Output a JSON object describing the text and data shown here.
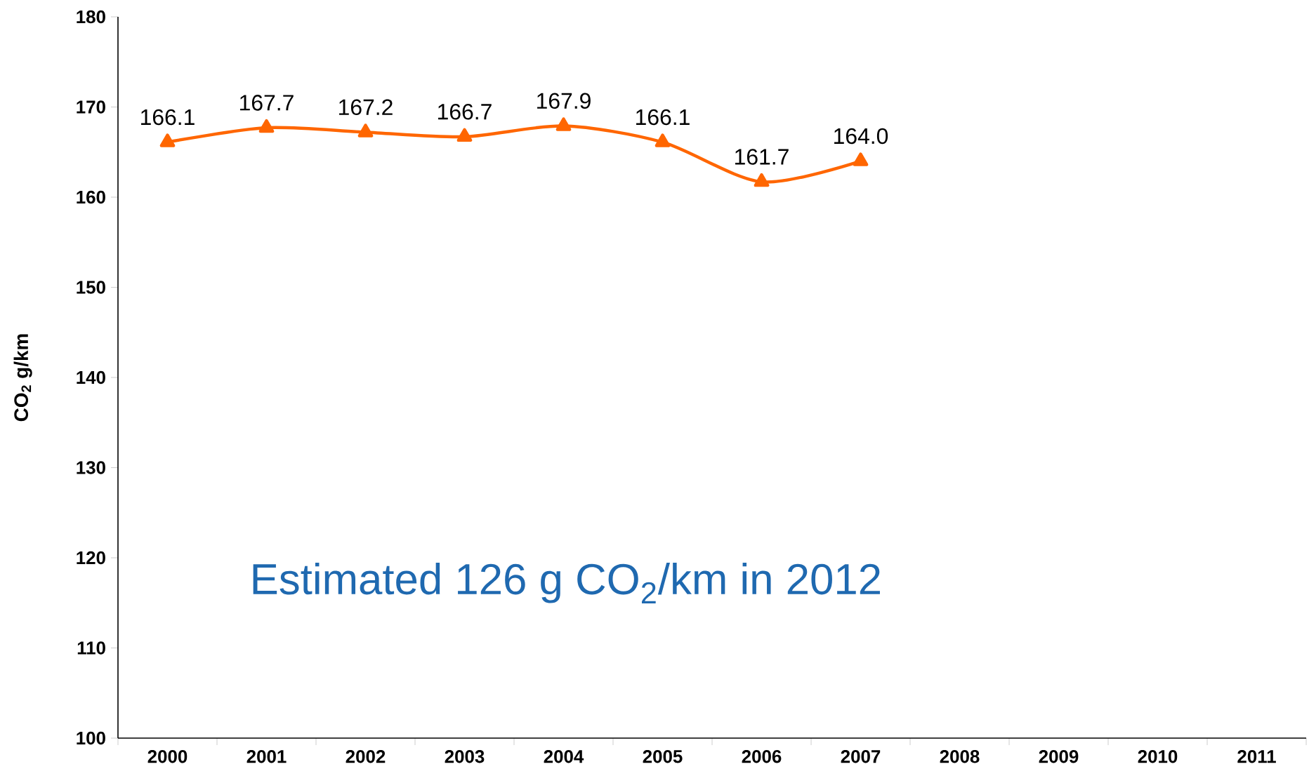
{
  "chart_data": {
    "type": "line",
    "ylabel": "CO$_{2}$ g/km",
    "categories": [
      "2000",
      "2001",
      "2002",
      "2003",
      "2004",
      "2005",
      "2006",
      "2007",
      "2008",
      "2009",
      "2010",
      "2011"
    ],
    "values": [
      166.1,
      167.7,
      167.2,
      166.7,
      167.9,
      166.1,
      161.7,
      164.0,
      null,
      null,
      null,
      null
    ],
    "color": "#ff6600",
    "marker": "triangle",
    "value_labels": [
      "166.1",
      "167.7",
      "167.2",
      "166.7",
      "167.9",
      "166.1",
      "161.7",
      "164.0",
      null,
      null,
      null,
      null
    ],
    "ylim": [
      100,
      180
    ],
    "yticks": [
      100,
      110,
      120,
      130,
      140,
      150,
      160,
      170,
      180
    ],
    "annotations": [
      "Estimated 126 g CO$_{2}$/km in 2012"
    ]
  }
}
